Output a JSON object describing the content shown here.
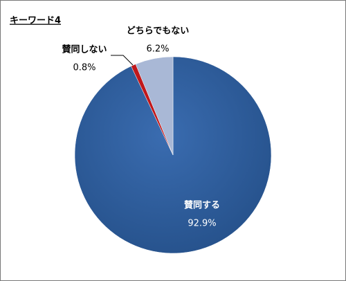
{
  "chart_data": {
    "type": "pie",
    "title": "キーワード4",
    "categories": [
      "賛同する",
      "賛同しない",
      "どちらでもない"
    ],
    "values": [
      92.9,
      0.8,
      6.2
    ],
    "value_labels": [
      "92.9%",
      "0.8%",
      "6.2%"
    ],
    "colors": [
      "#2f5f9e",
      "#c0181b",
      "#a9b8d6"
    ]
  }
}
